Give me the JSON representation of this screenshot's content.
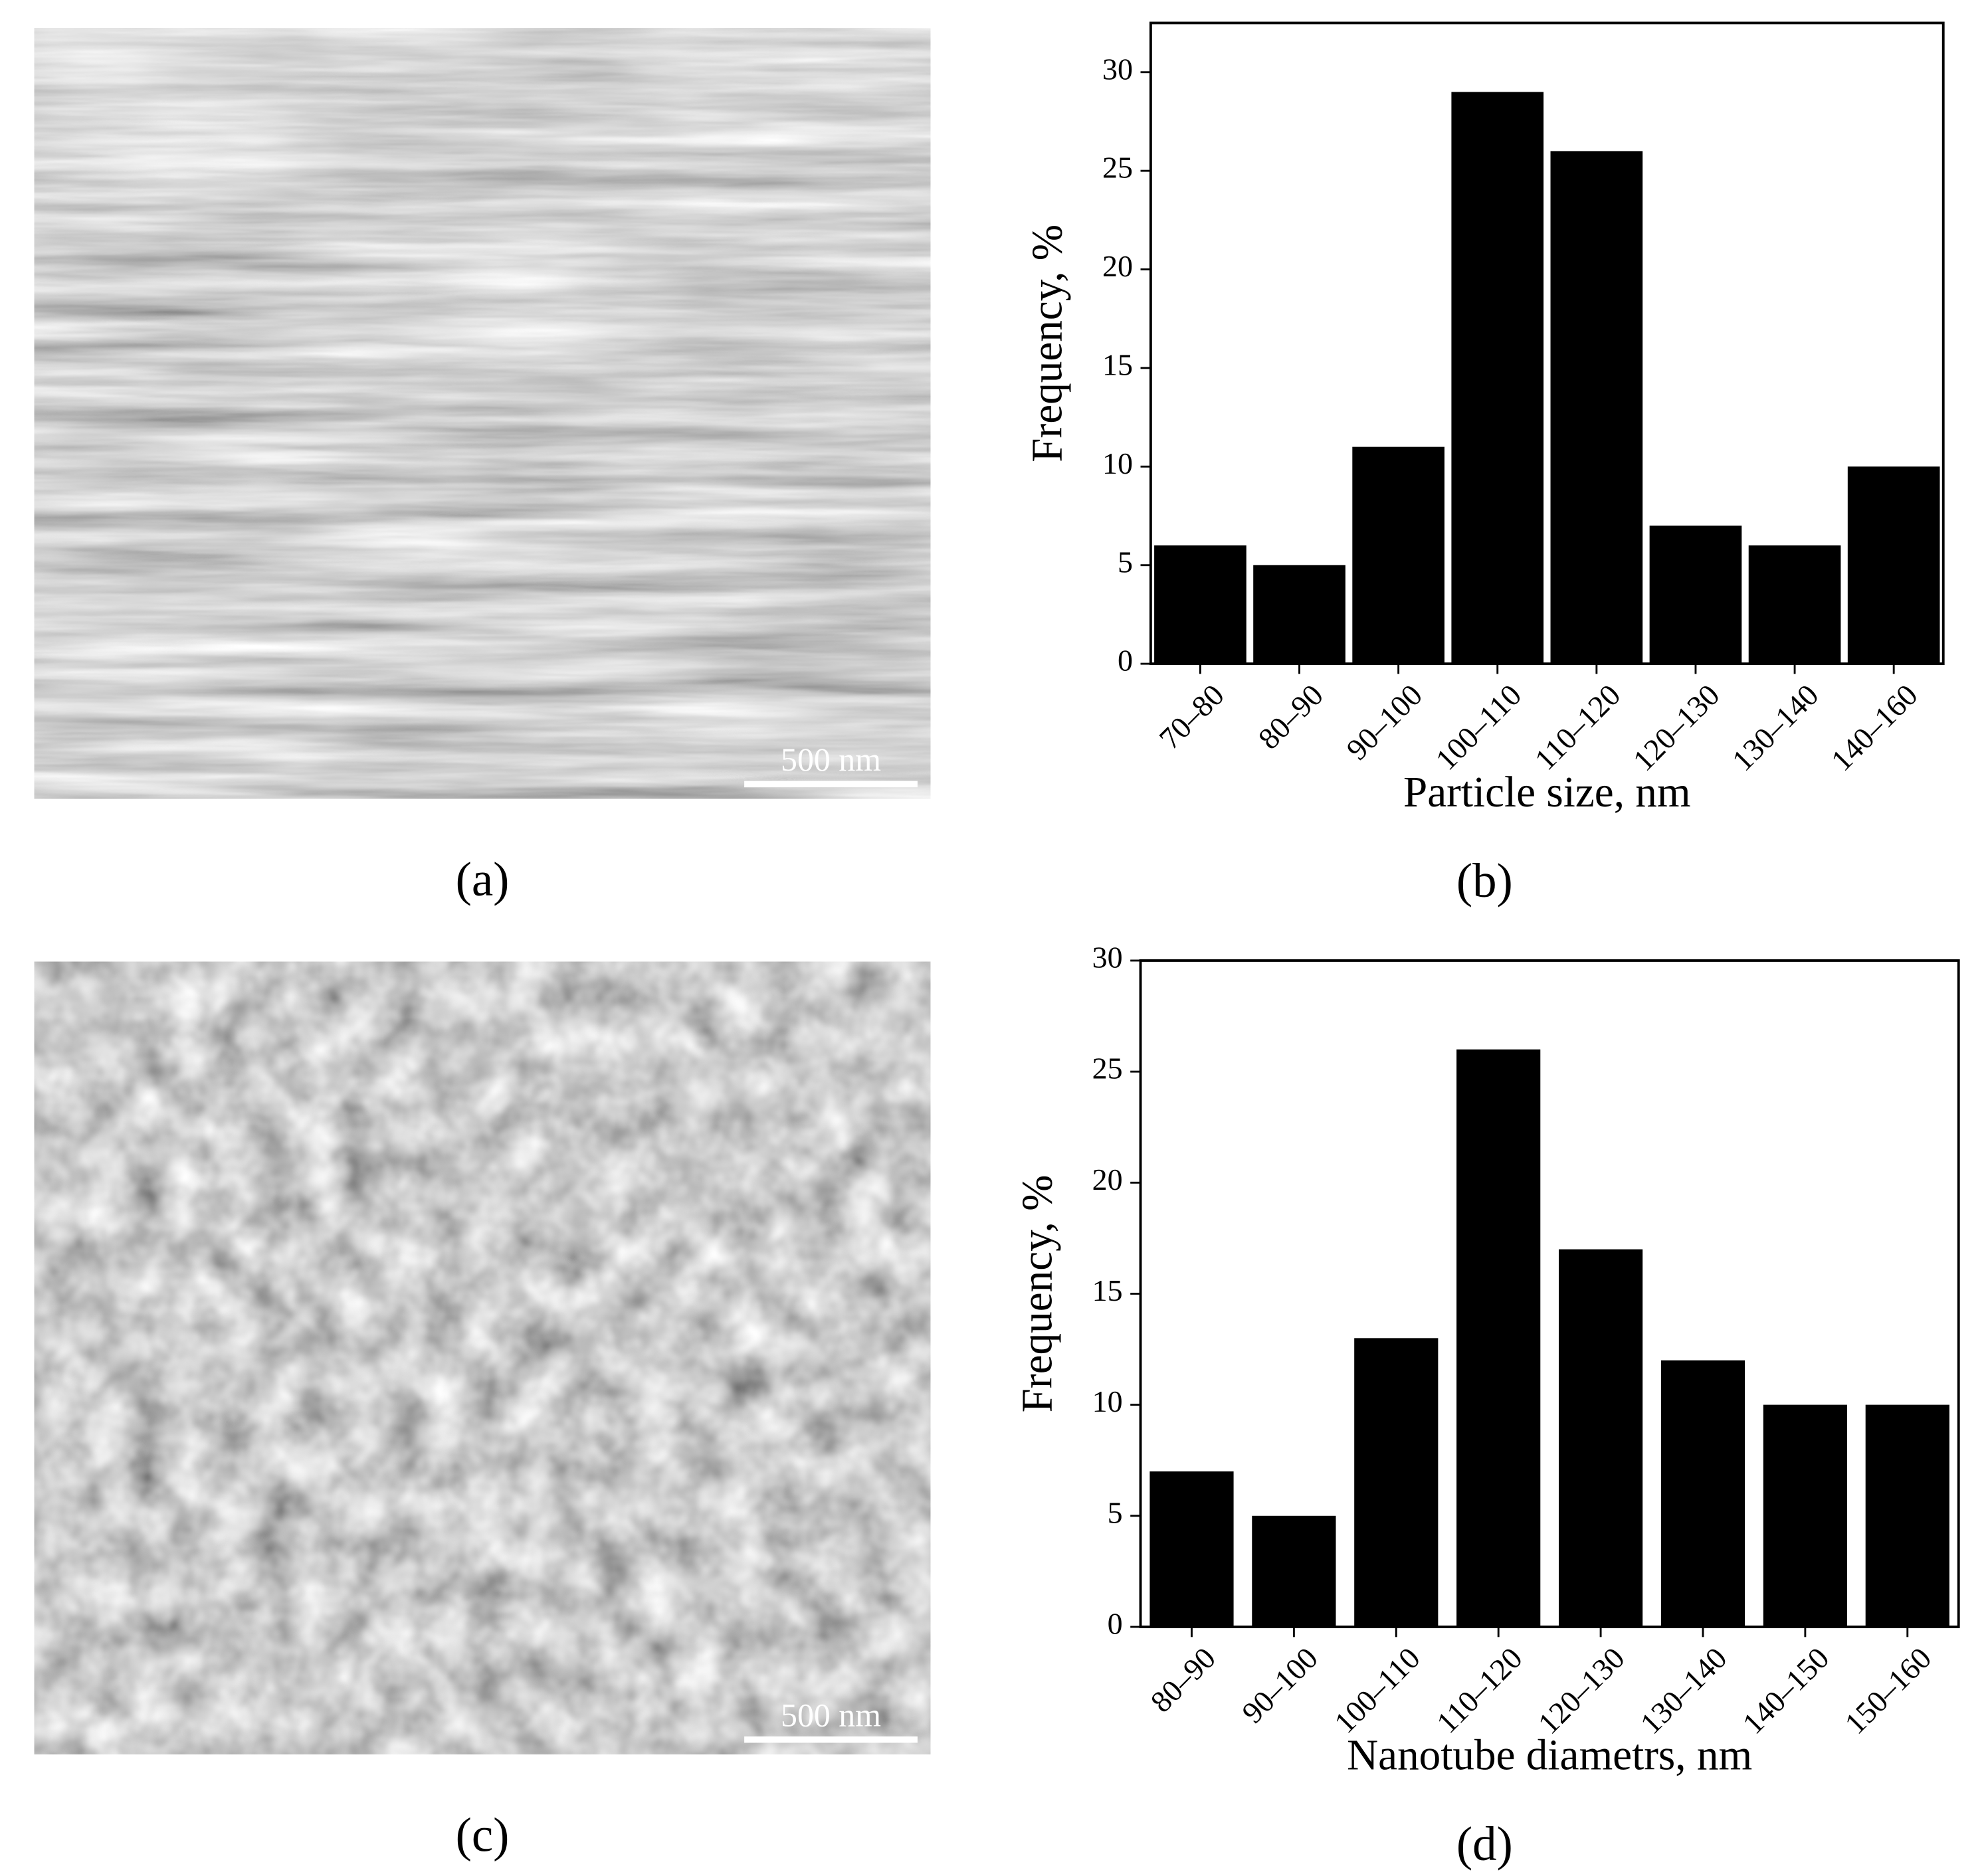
{
  "chart_data": [
    {
      "type": "bar",
      "panel_label": "(b)",
      "x_label": "Particle size, nm",
      "y_label": "Frequency, %",
      "categories": [
        "70–80",
        "80–90",
        "90–100",
        "100–110",
        "110–120",
        "120–130",
        "130–140",
        "140–160"
      ],
      "values": [
        6,
        5,
        11,
        29,
        26,
        7,
        6,
        10
      ],
      "color": "#000000",
      "ylim": [
        0,
        32.5
      ],
      "yticks": [
        0,
        5,
        10,
        15,
        20,
        25,
        30
      ]
    },
    {
      "type": "bar",
      "panel_label": "(d)",
      "x_label": "Nanotube diametrs, nm",
      "y_label": "Frequency, %",
      "categories": [
        "80–90",
        "90–100",
        "100–110",
        "110–120",
        "120–130",
        "130–140",
        "140–150",
        "150–160"
      ],
      "values": [
        7,
        5,
        13,
        26,
        17,
        12,
        10,
        10
      ],
      "color": "#000000",
      "ylim": [
        0,
        30
      ],
      "yticks": [
        0,
        5,
        10,
        15,
        20,
        25,
        30
      ]
    }
  ],
  "images": [
    {
      "panel_label": "(a)",
      "scale_bar": "500 nm"
    },
    {
      "panel_label": "(c)",
      "scale_bar": "500 nm"
    }
  ]
}
